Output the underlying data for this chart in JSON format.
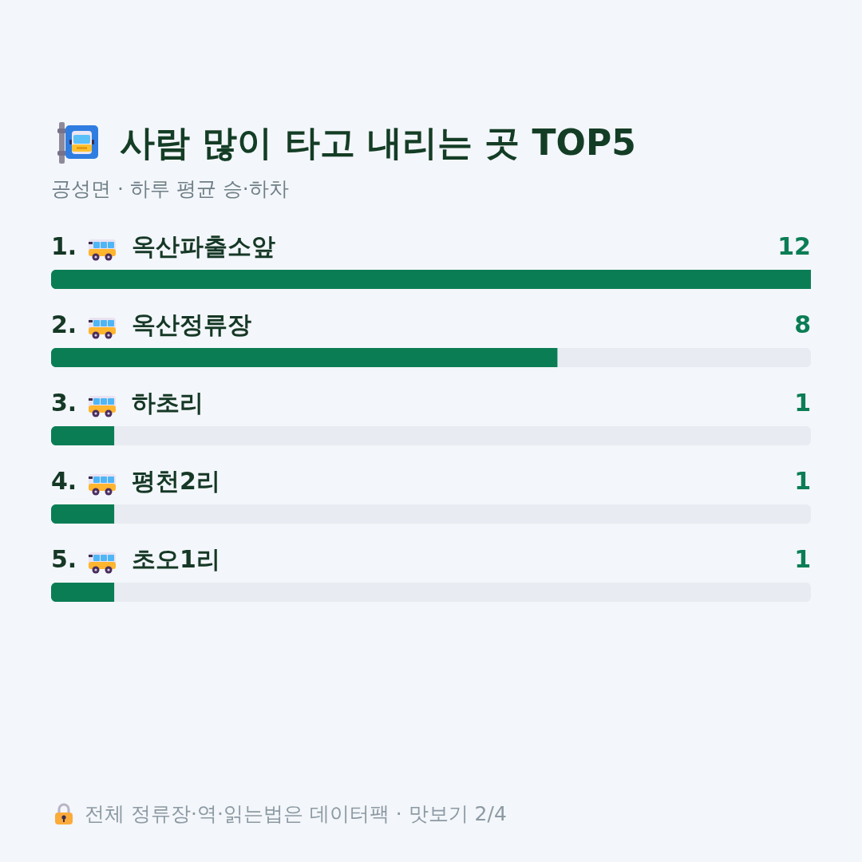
{
  "chart_data": {
    "type": "bar",
    "orientation": "horizontal",
    "title": "사람 많이 타고 내리는 곳 TOP5",
    "subtitle": "공성면 · 하루 평균 승·하차",
    "categories": [
      "1. 옥산파출소앞",
      "2. 옥산정류장",
      "3. 하초리",
      "4. 평천2리",
      "5. 초오1리"
    ],
    "values": [
      12,
      8,
      1,
      1,
      1
    ],
    "color": "#0b7d55",
    "xlim": [
      0,
      12
    ],
    "data_labels": true,
    "annotations": [
      "전체 정류장·역·읽는법은 데이터팩 · 맛보기 2/4"
    ]
  }
}
